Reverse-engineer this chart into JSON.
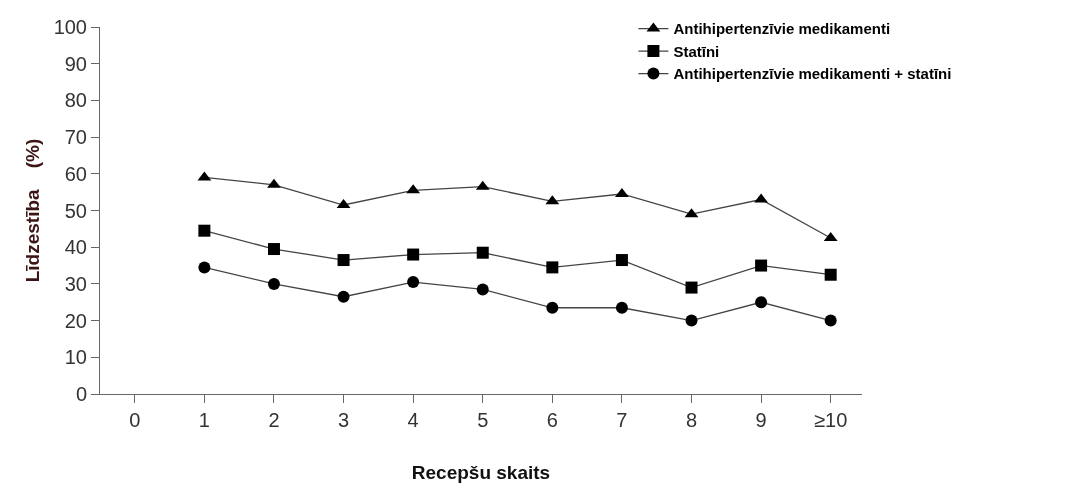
{
  "chart_data": {
    "type": "line",
    "xlabel": "Recepšu skaits",
    "ylabel": "Līdzestība    (%)",
    "categories": [
      "0",
      "1",
      "2",
      "3",
      "4",
      "5",
      "6",
      "7",
      "8",
      "9",
      "≥10"
    ],
    "series": [
      {
        "name": "Antihipertenzīvie medikamenti",
        "color": "#000000",
        "marker": "triangle",
        "values": [
          null,
          59,
          57,
          51.5,
          55.5,
          56.5,
          52.5,
          54.5,
          49,
          53,
          42.5
        ]
      },
      {
        "name": "Statīni",
        "color": "#000000",
        "marker": "square",
        "values": [
          null,
          44.5,
          39.5,
          36.5,
          38,
          38.5,
          34.5,
          36.5,
          29,
          35,
          32.5
        ]
      },
      {
        "name": "Antihipertenzīvie medikamenti + statīni",
        "color": "#000000",
        "marker": "circle",
        "values": [
          null,
          34.5,
          30,
          26.5,
          30.5,
          28.5,
          23.5,
          23.5,
          20,
          25,
          20
        ]
      }
    ],
    "ylim": [
      0,
      100
    ],
    "yticks": [
      0,
      10,
      20,
      30,
      40,
      50,
      60,
      70,
      80,
      90,
      100
    ],
    "legend": "top right",
    "line_style": "solid"
  }
}
